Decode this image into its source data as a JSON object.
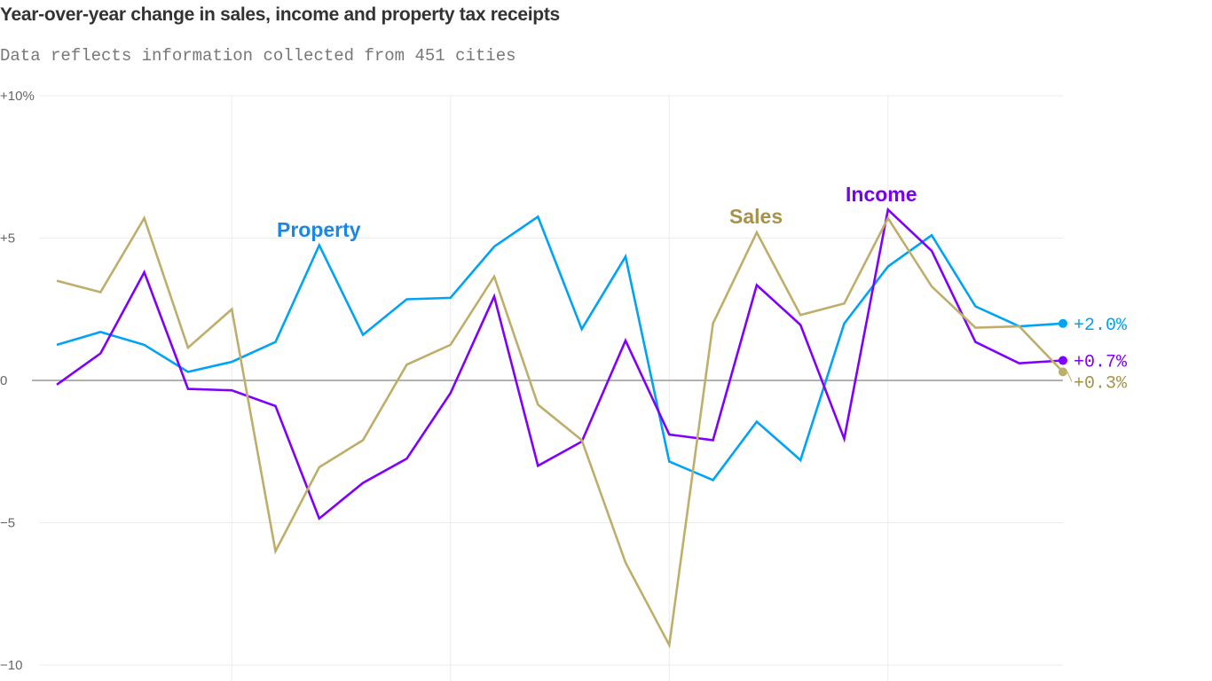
{
  "chart_data": {
    "type": "line",
    "title": "Year-over-year change in sales, income and property tax receipts",
    "subtitle": "Data reflects information collected from 451 cities",
    "xlabel": "",
    "ylabel": "",
    "ylim": [
      -10,
      10
    ],
    "yticks": [
      {
        "value": 10,
        "label": "+10%"
      },
      {
        "value": 5,
        "label": "+5"
      },
      {
        "value": 0,
        "label": "0"
      },
      {
        "value": -5,
        "label": "−5"
      },
      {
        "value": -10,
        "label": "−10"
      }
    ],
    "grid": true,
    "x_count": 24,
    "vertical_grid_every": 5,
    "series": [
      {
        "name": "Property",
        "color": "#00a3f5",
        "label_color": "#1a86e8",
        "end_label": "+2.0%",
        "values": [
          1.25,
          1.7,
          1.25,
          0.3,
          0.65,
          1.35,
          4.75,
          1.6,
          2.85,
          2.9,
          4.7,
          5.75,
          1.8,
          4.35,
          -2.85,
          -3.5,
          -1.45,
          -2.8,
          2.0,
          4.0,
          5.1,
          2.6,
          1.9,
          2.0
        ]
      },
      {
        "name": "Income",
        "color": "#7f00ff",
        "label_color": "#7a00f0",
        "end_label": "+0.7%",
        "values": [
          -0.15,
          0.95,
          3.8,
          -0.3,
          -0.35,
          -0.9,
          -4.85,
          -3.6,
          -2.75,
          -0.45,
          2.95,
          -3.0,
          -2.15,
          1.4,
          -1.9,
          -2.1,
          3.35,
          1.95,
          -2.05,
          6.0,
          4.55,
          1.35,
          0.6,
          0.7
        ]
      },
      {
        "name": "Sales",
        "color": "#bfae6a",
        "label_color": "#a8924a",
        "end_label": "+0.3%",
        "values": [
          3.5,
          3.1,
          5.7,
          1.15,
          2.5,
          -6.0,
          -3.05,
          -2.1,
          0.55,
          1.25,
          3.65,
          -0.85,
          -2.1,
          -6.4,
          -9.3,
          2.0,
          5.2,
          2.3,
          2.7,
          5.7,
          3.3,
          1.85,
          1.9,
          0.3
        ]
      }
    ]
  }
}
